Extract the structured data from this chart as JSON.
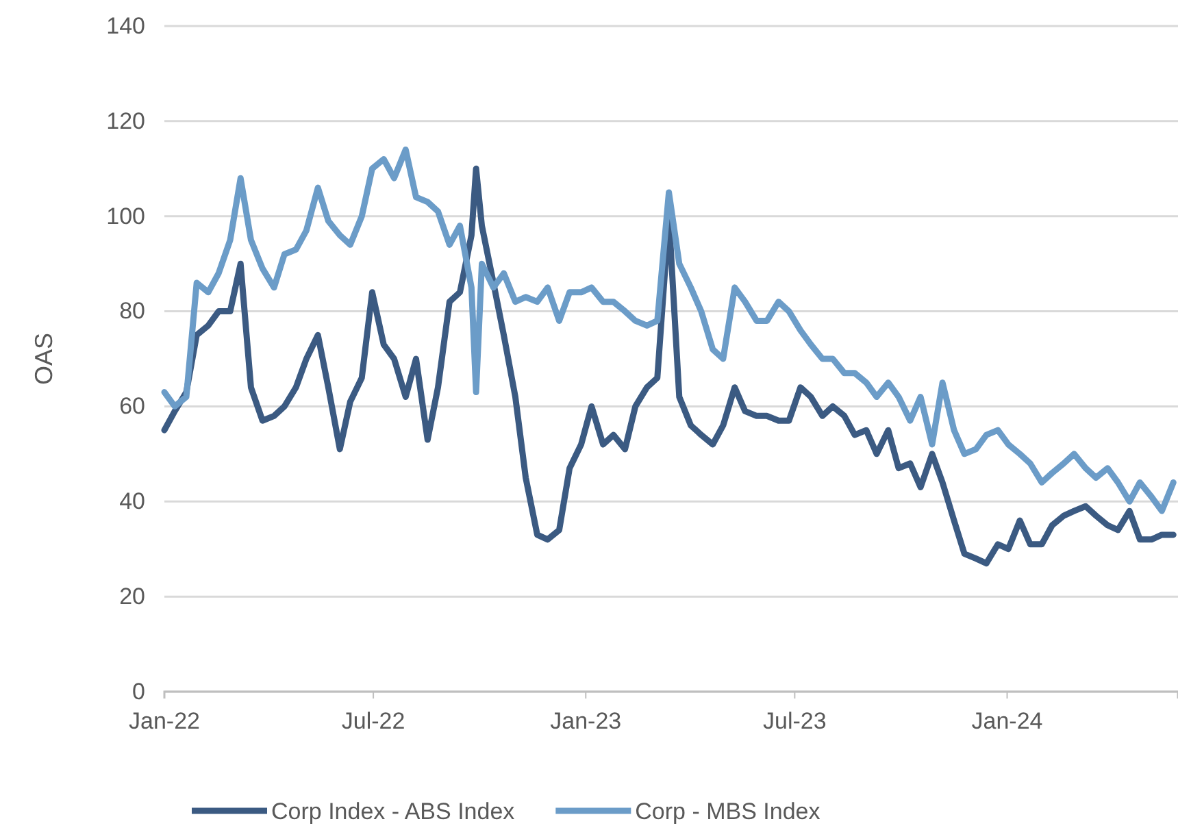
{
  "chart_data": {
    "type": "line",
    "ylabel": "OAS",
    "xlim": [
      "2022-01-01",
      "2024-05-28"
    ],
    "xticks": [
      {
        "value": "2022-01-01",
        "label": "Jan-22"
      },
      {
        "value": "2022-07-01",
        "label": "Jul-22"
      },
      {
        "value": "2023-01-01",
        "label": "Jan-23"
      },
      {
        "value": "2023-07-01",
        "label": "Jul-23"
      },
      {
        "value": "2024-01-01",
        "label": "Jan-24"
      }
    ],
    "ylim": [
      0,
      140
    ],
    "yticks": [
      0,
      20,
      40,
      60,
      80,
      100,
      120,
      140
    ],
    "grid": "y",
    "legend": "bottom",
    "marker": "none",
    "line_style": "solid",
    "x": [
      "2022-01-01",
      "2022-01-10",
      "2022-01-20",
      "2022-01-29",
      "2022-02-08",
      "2022-02-17",
      "2022-02-27",
      "2022-03-08",
      "2022-03-17",
      "2022-03-27",
      "2022-04-06",
      "2022-04-15",
      "2022-04-25",
      "2022-05-04",
      "2022-05-14",
      "2022-05-23",
      "2022-06-02",
      "2022-06-11",
      "2022-06-21",
      "2022-06-30",
      "2022-07-10",
      "2022-07-19",
      "2022-07-29",
      "2022-08-07",
      "2022-08-17",
      "2022-08-26",
      "2022-09-05",
      "2022-09-14",
      "2022-09-24",
      "2022-09-28",
      "2022-10-03",
      "2022-10-13",
      "2022-10-22",
      "2022-11-01",
      "2022-11-10",
      "2022-11-20",
      "2022-11-29",
      "2022-12-09",
      "2022-12-18",
      "2022-12-28",
      "2023-01-06",
      "2023-01-16",
      "2023-01-25",
      "2023-02-04",
      "2023-02-13",
      "2023-02-23",
      "2023-03-04",
      "2023-03-14",
      "2023-03-23",
      "2023-04-02",
      "2023-04-11",
      "2023-04-21",
      "2023-04-30",
      "2023-05-10",
      "2023-05-19",
      "2023-05-29",
      "2023-06-07",
      "2023-06-17",
      "2023-06-26",
      "2023-07-06",
      "2023-07-15",
      "2023-07-25",
      "2023-08-03",
      "2023-08-13",
      "2023-08-22",
      "2023-09-01",
      "2023-09-10",
      "2023-09-20",
      "2023-09-29",
      "2023-10-09",
      "2023-10-18",
      "2023-10-28",
      "2023-11-06",
      "2023-11-16",
      "2023-11-25",
      "2023-12-05",
      "2023-12-14",
      "2023-12-24",
      "2024-01-02",
      "2024-01-12",
      "2024-01-21",
      "2024-01-31",
      "2024-02-09",
      "2024-02-19",
      "2024-02-28",
      "2024-03-09",
      "2024-03-18",
      "2024-03-28",
      "2024-04-06",
      "2024-04-16",
      "2024-04-25",
      "2024-05-05",
      "2024-05-14",
      "2024-05-24"
    ],
    "series": [
      {
        "name": "Corp Index - ABS Index",
        "color": "#3b5a82",
        "values": [
          55,
          59,
          63,
          75,
          77,
          80,
          80,
          90,
          64,
          57,
          58,
          60,
          64,
          70,
          75,
          64,
          51,
          61,
          66,
          84,
          73,
          70,
          62,
          70,
          53,
          64,
          82,
          84,
          96,
          110,
          98,
          86,
          75,
          62,
          45,
          33,
          32,
          34,
          47,
          52,
          60,
          52,
          54,
          51,
          60,
          64,
          66,
          100,
          62,
          56,
          54,
          52,
          56,
          64,
          59,
          58,
          58,
          57,
          57,
          64,
          62,
          58,
          60,
          58,
          54,
          55,
          50,
          55,
          47,
          48,
          43,
          50,
          44,
          36,
          29,
          28,
          27,
          31,
          30,
          36,
          31,
          31,
          35,
          37,
          38,
          39,
          37,
          35,
          34,
          38,
          32,
          32,
          33,
          33
        ]
      },
      {
        "name": "Corp - MBS Index",
        "color": "#6b9cc8",
        "values": [
          63,
          60,
          62,
          86,
          84,
          88,
          95,
          108,
          95,
          89,
          85,
          92,
          93,
          97,
          106,
          99,
          96,
          94,
          100,
          110,
          112,
          108,
          114,
          104,
          103,
          101,
          94,
          98,
          85,
          63,
          90,
          85,
          88,
          82,
          83,
          82,
          85,
          78,
          84,
          84,
          85,
          82,
          82,
          80,
          78,
          77,
          78,
          105,
          90,
          85,
          80,
          72,
          70,
          85,
          82,
          78,
          78,
          82,
          80,
          76,
          73,
          70,
          70,
          67,
          67,
          65,
          62,
          65,
          62,
          57,
          62,
          52,
          65,
          55,
          50,
          51,
          54,
          55,
          52,
          50,
          48,
          44,
          46,
          48,
          50,
          47,
          45,
          47,
          44,
          40,
          44,
          41,
          38,
          44
        ]
      }
    ]
  }
}
